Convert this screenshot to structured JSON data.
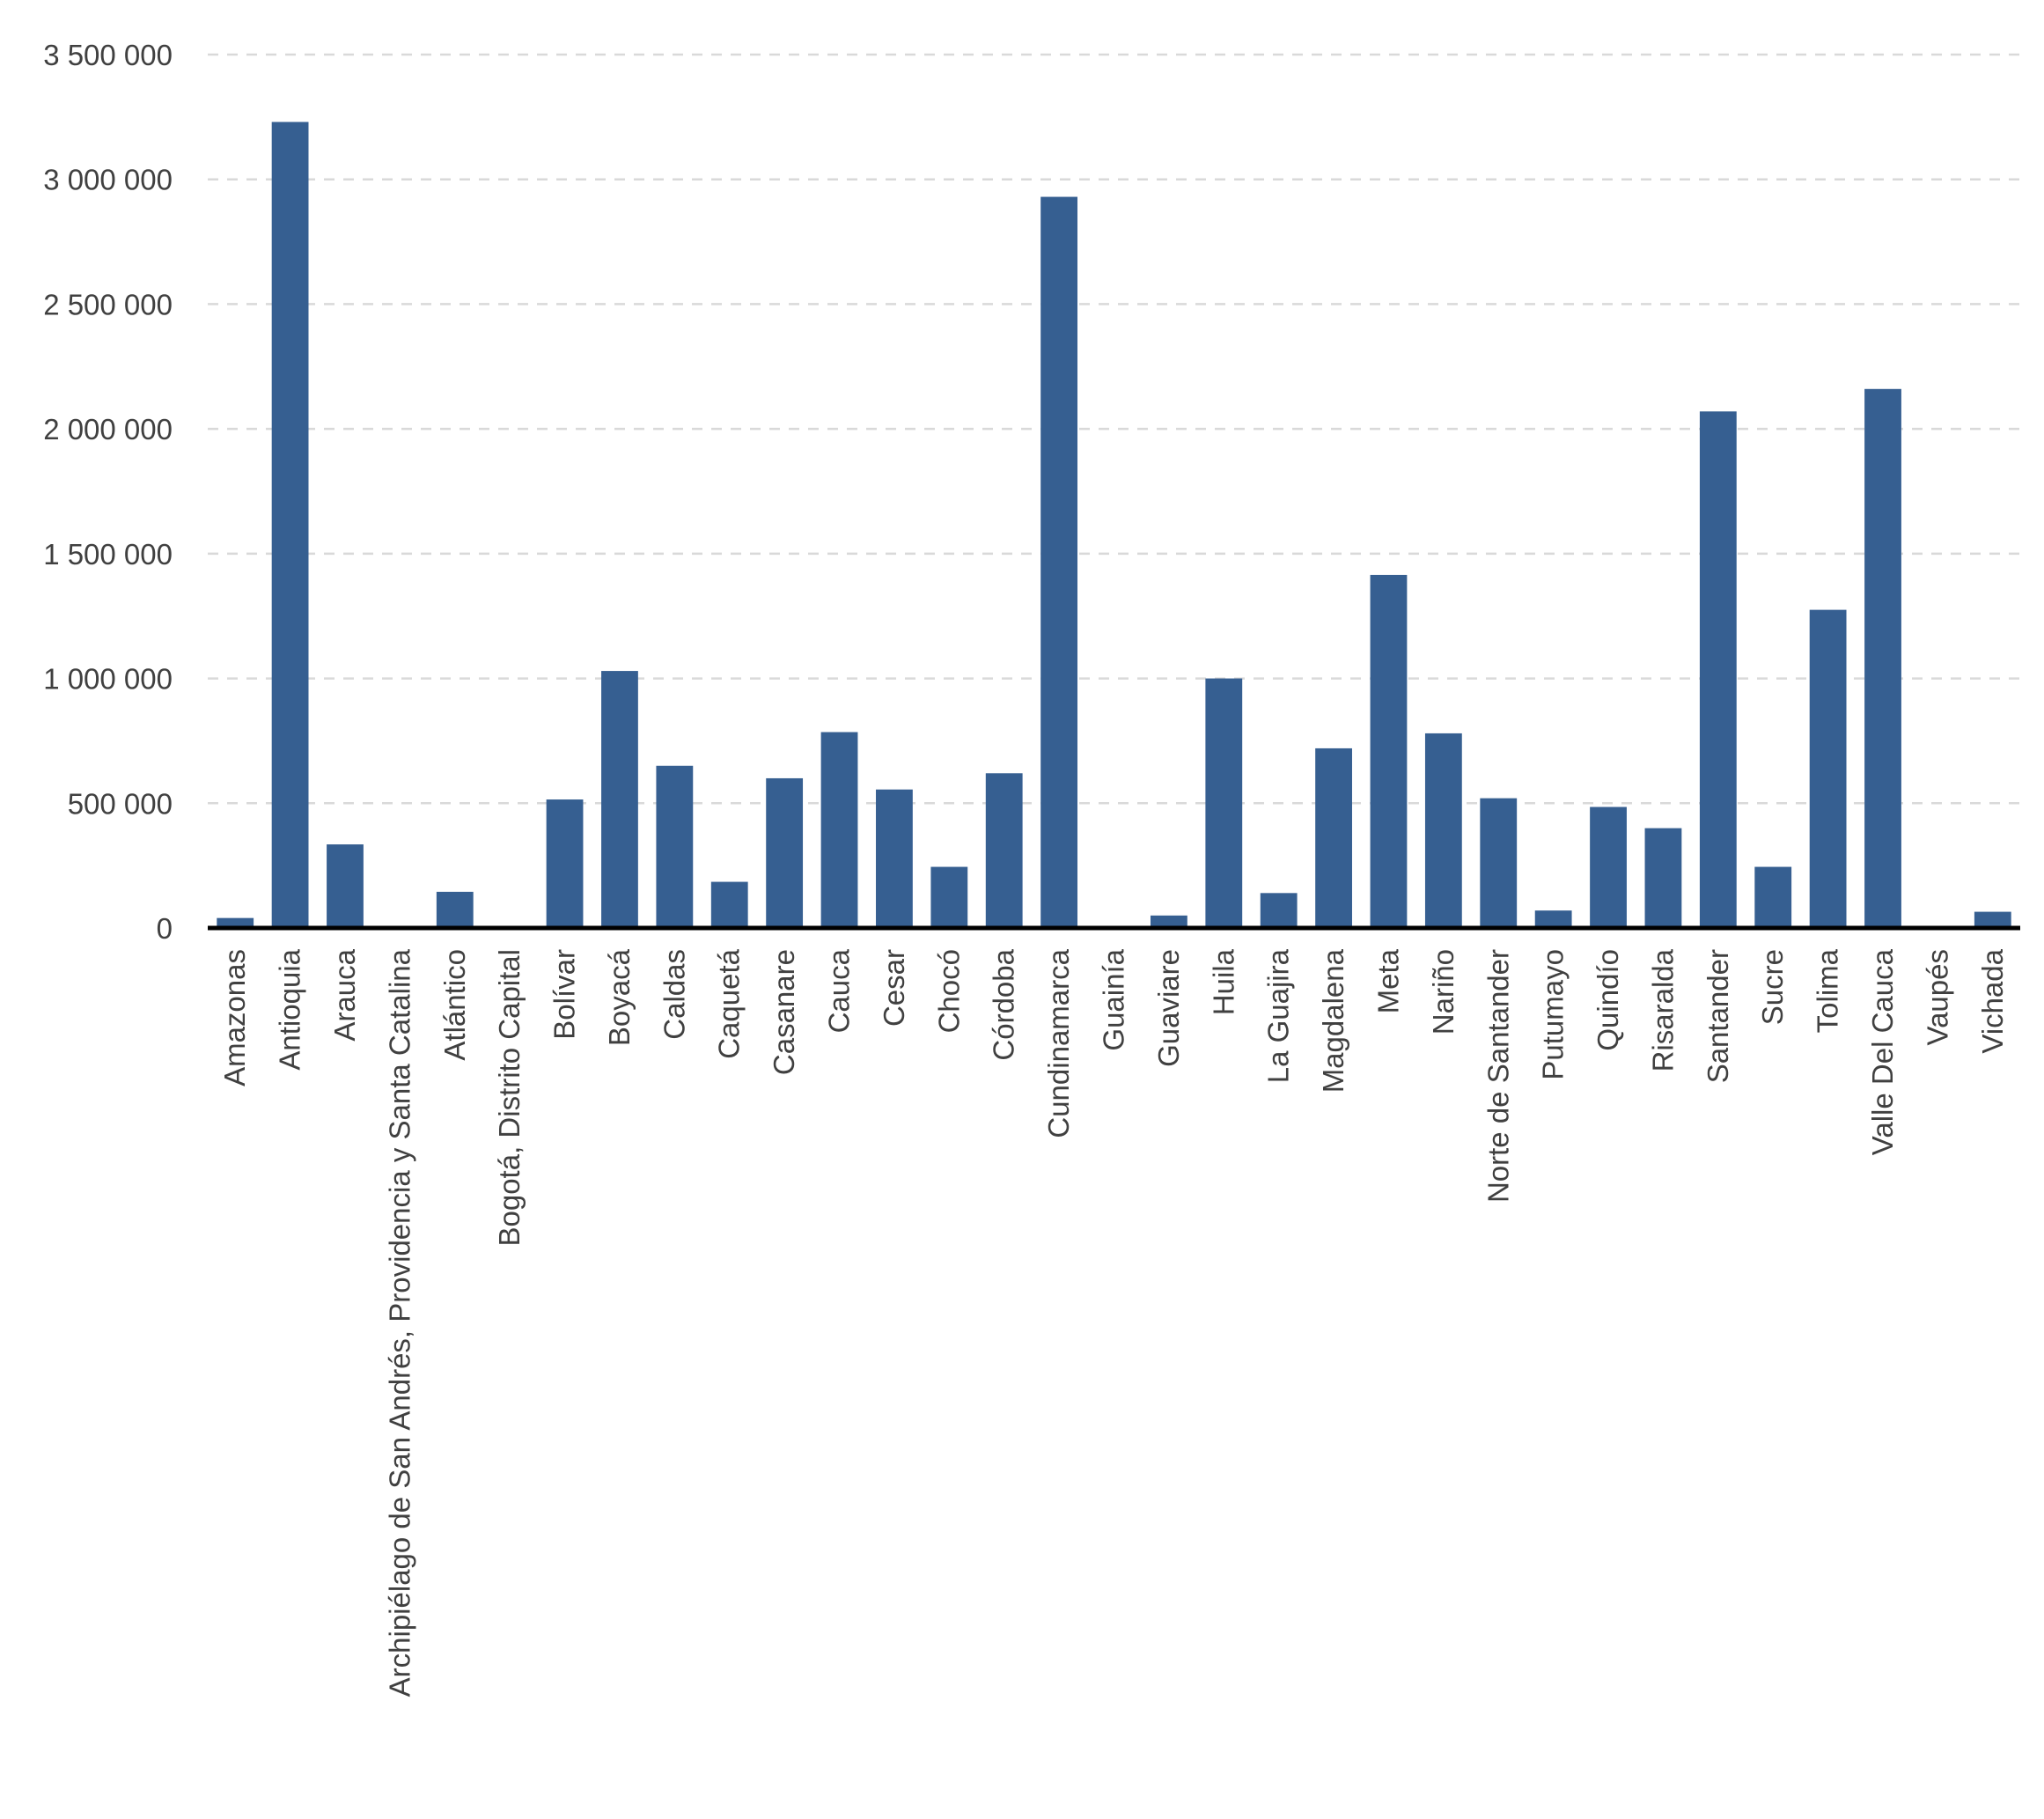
{
  "chart_data": {
    "type": "bar",
    "title": "",
    "xlabel": "",
    "ylabel": "",
    "ylim": [
      0,
      3500000
    ],
    "yticks": [
      0,
      500000,
      1000000,
      1500000,
      2000000,
      2500000,
      3000000,
      3500000
    ],
    "ytick_labels": [
      "0",
      "500 000",
      "1 000 000",
      "1 500 000",
      "2 000 000",
      "2 500 000",
      "3 000 000",
      "3 500 000"
    ],
    "grid": true,
    "legend": "none",
    "bar_color": "#365f91",
    "categories": [
      "Amazonas",
      "Antioquia",
      "Arauca",
      "Archipiélago de San Andrés, Providencia y Santa Catalina",
      "Atlántico",
      "Bogotá, Distrito Capital",
      "Bolívar",
      "Boyacá",
      "Caldas",
      "Caquetá",
      "Casanare",
      "Cauca",
      "Cesar",
      "Chocó",
      "Córdoba",
      "Cundinamarca",
      "Guainía",
      "Guaviare",
      "Huila",
      "La Guajira",
      "Magdalena",
      "Meta",
      "Nariño",
      "Norte de Santander",
      "Putumayo",
      "Quindío",
      "Risaralda",
      "Santander",
      "Sucre",
      "Tolima",
      "Valle Del Cauca",
      "Vaupés",
      "Vichada"
    ],
    "values": [
      40000,
      3230000,
      335000,
      0,
      145000,
      0,
      515000,
      1030000,
      650000,
      185000,
      600000,
      785000,
      555000,
      245000,
      620000,
      2930000,
      0,
      50000,
      1000000,
      140000,
      720000,
      1415000,
      780000,
      520000,
      70000,
      485000,
      400000,
      2070000,
      245000,
      1275000,
      2160000,
      0,
      65000
    ]
  }
}
